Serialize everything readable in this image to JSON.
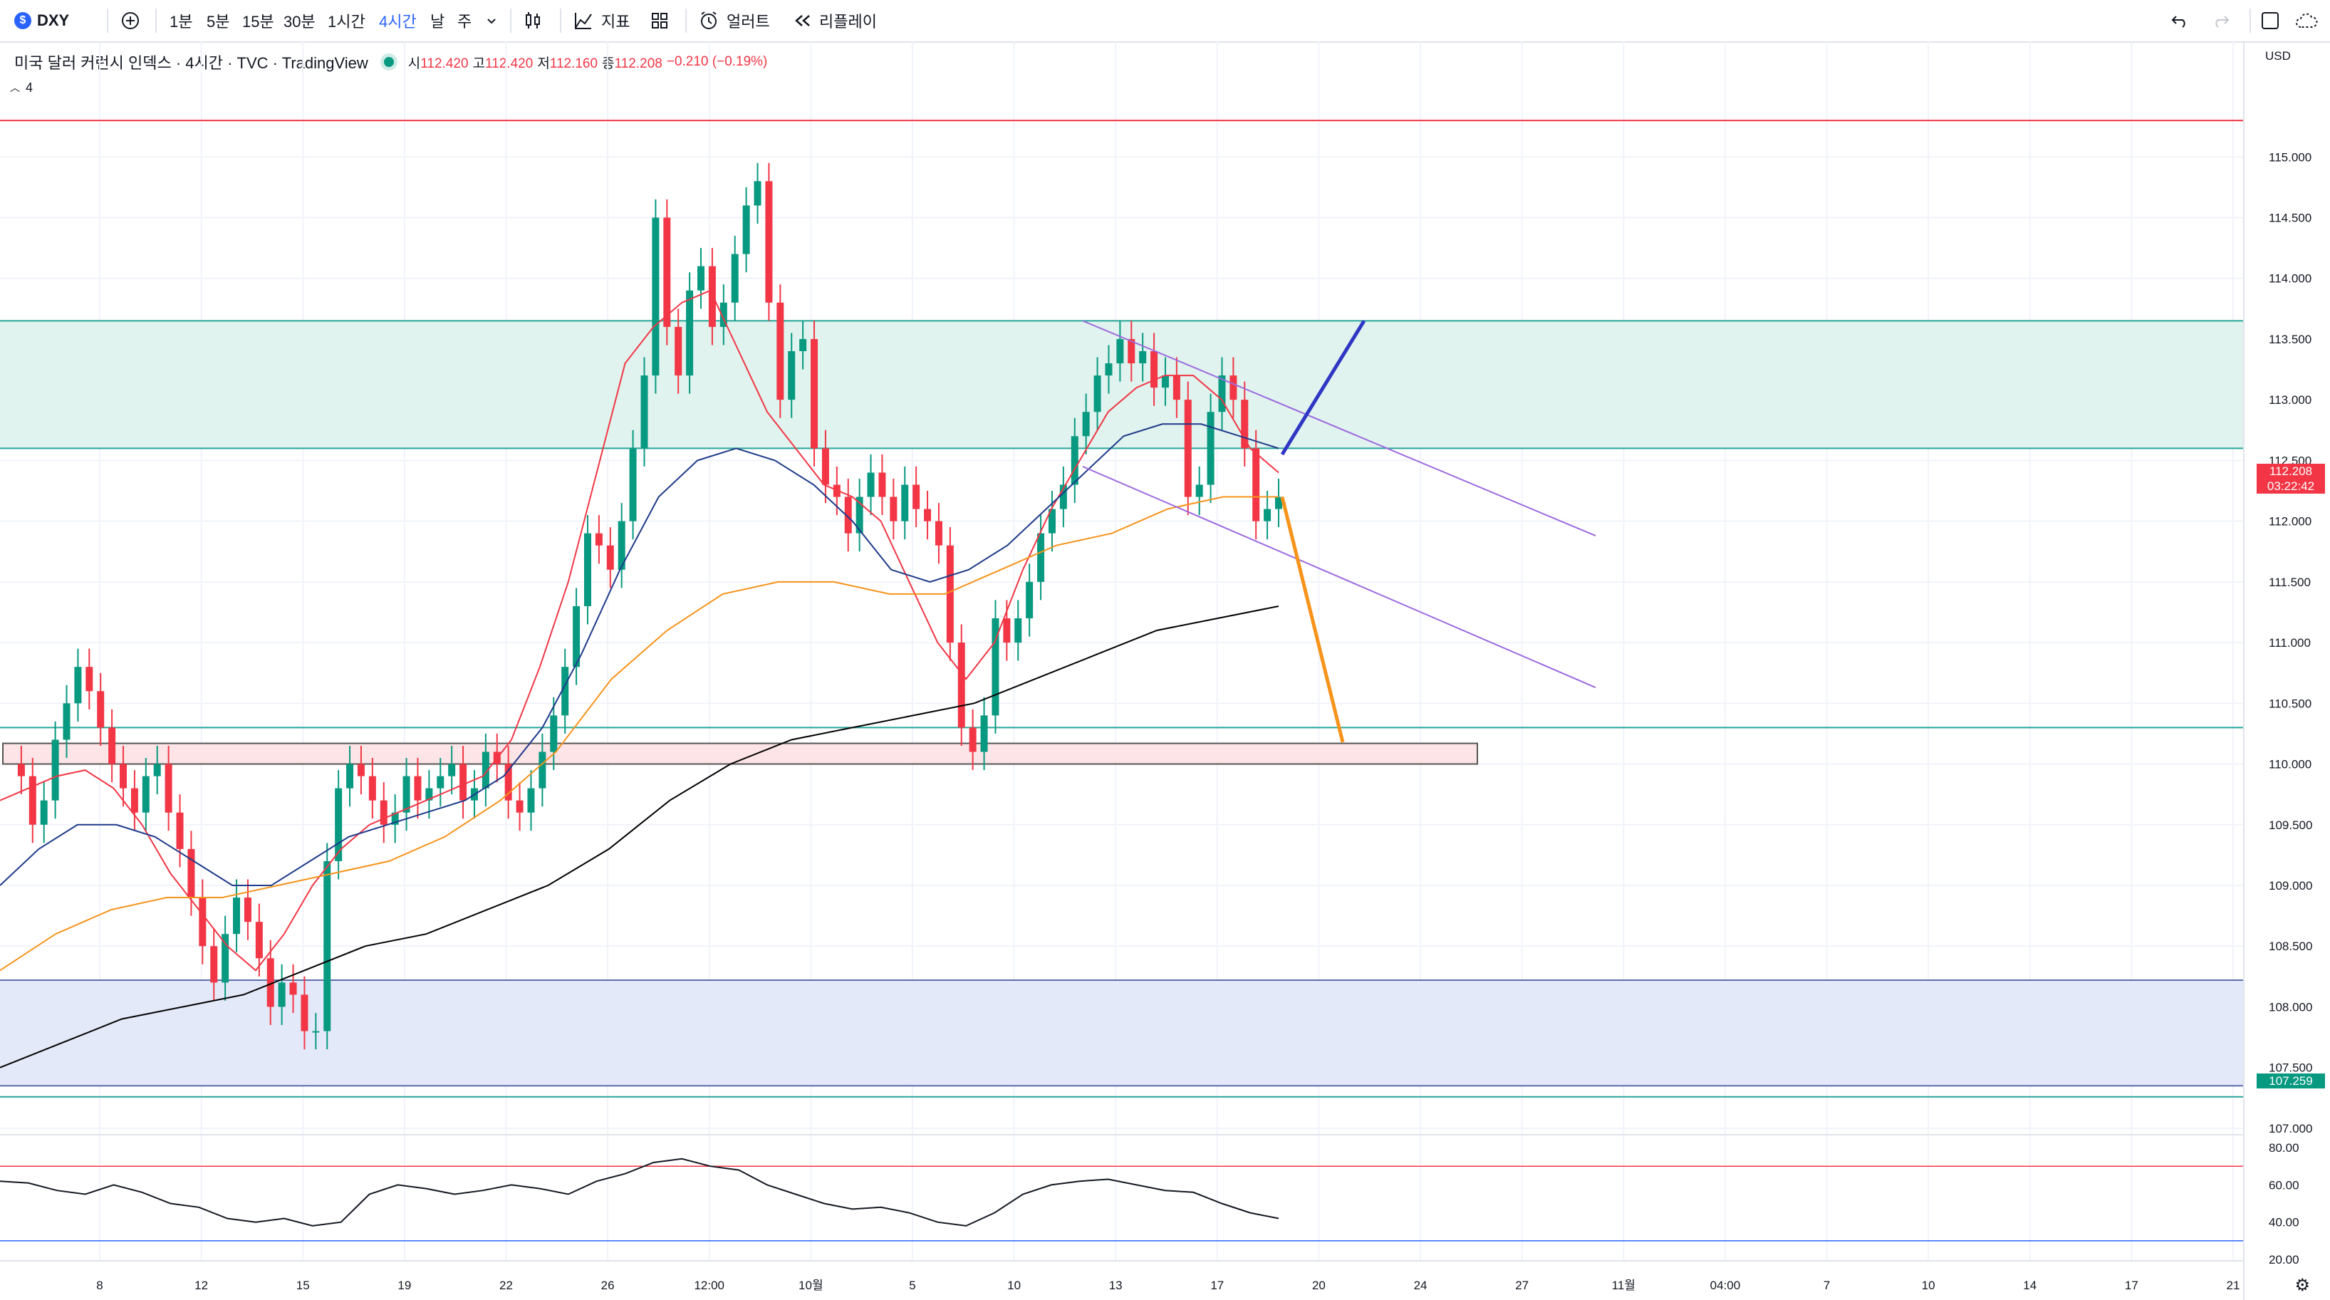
{
  "toolbar": {
    "symbol": "DXY",
    "symbol_icon": "$",
    "intervals": [
      "1분",
      "5분",
      "15분",
      "30분",
      "1시간",
      "4시간",
      "날",
      "주"
    ],
    "active_interval": "4시간",
    "indicators_label": "지표",
    "alert_label": "얼러트",
    "replay_label": "리플레이"
  },
  "legend": {
    "title": "미국 달러 커런시 인덱스 · 4시간 · TVC · TradingView",
    "open_label": "시",
    "open": "112.420",
    "high_label": "고",
    "high": "112.420",
    "low_label": "저",
    "low": "112.160",
    "close_label": "종",
    "close": "112.208",
    "change": "−0.210 (−0.19%)",
    "indicator_count": "4"
  },
  "price_axis": {
    "currency": "USD",
    "ticks": [
      "115.000",
      "114.500",
      "114.000",
      "113.500",
      "113.000",
      "112.500",
      "112.000",
      "111.500",
      "111.000",
      "110.500",
      "110.000",
      "109.500",
      "109.000",
      "108.500",
      "108.000",
      "107.500",
      "107.000"
    ],
    "current_price": "112.208",
    "countdown": "03:22:42",
    "marked_price": "107.259"
  },
  "rsi_axis": {
    "ticks": [
      "80.00",
      "60.00",
      "40.00",
      "20.00"
    ]
  },
  "time_axis": {
    "labels": [
      "8",
      "12",
      "15",
      "19",
      "22",
      "26",
      "12:00",
      "10월",
      "5",
      "10",
      "13",
      "17",
      "20",
      "24",
      "27",
      "11월",
      "04:00",
      "7",
      "10",
      "14",
      "17",
      "21"
    ]
  },
  "colors": {
    "up": "#089981",
    "down": "#f23645",
    "accent": "#2962ff",
    "ema_fast": "#f23645",
    "ema_mid": "#1e3a8a",
    "ema_slow": "#f7931a",
    "ema_long": "#000000",
    "zone_green": "#e0f3ee",
    "zone_blue": "#e4e9f9",
    "zone_pink": "#fde4e6",
    "channel": "#9c6ade",
    "rsi": "#131722"
  },
  "chart_data": {
    "type": "candlestick",
    "symbol": "DXY",
    "timeframe": "4H",
    "ylim": [
      106.8,
      115.6
    ],
    "series": [
      {
        "name": "price",
        "values": [
          110.0,
          109.9,
          109.5,
          109.7,
          110.2,
          110.5,
          110.8,
          110.6,
          110.3,
          110.0,
          109.8,
          109.6,
          109.9,
          110.0,
          109.6,
          109.3,
          108.9,
          108.5,
          108.2,
          108.6,
          108.9,
          108.7,
          108.4,
          108.0,
          108.2,
          108.1,
          107.8,
          107.8,
          109.2,
          109.8,
          110.0,
          109.9,
          109.7,
          109.5,
          109.6,
          109.9,
          109.7,
          109.8,
          109.9,
          110.0,
          109.7,
          109.8,
          110.1,
          110.0,
          109.7,
          109.6,
          109.8,
          110.1,
          110.4,
          110.8,
          111.3,
          111.9,
          111.8,
          111.6,
          112.0,
          112.6,
          113.2,
          114.5,
          113.6,
          113.2,
          113.9,
          114.1,
          113.6,
          113.8,
          114.2,
          114.6,
          114.8,
          113.8,
          113.0,
          113.4,
          113.5,
          112.6,
          112.3,
          112.2,
          111.9,
          112.2,
          112.4,
          112.2,
          112.0,
          112.3,
          112.1,
          112.0,
          111.8,
          111.0,
          110.3,
          110.1,
          110.4,
          111.2,
          111.0,
          111.2,
          111.5,
          111.9,
          112.1,
          112.3,
          112.7,
          112.9,
          113.2,
          113.3,
          113.5,
          113.3,
          113.4,
          113.1,
          113.2,
          113.0,
          112.2,
          112.3,
          112.9,
          113.2,
          113.0,
          112.6,
          112.0,
          112.1,
          112.2
        ]
      },
      {
        "name": "EMA short",
        "values": [
          109.7,
          109.8,
          109.9,
          109.95,
          109.8,
          109.5,
          109.1,
          108.8,
          108.5,
          108.3,
          108.6,
          109.0,
          109.3,
          109.5,
          109.6,
          109.7,
          109.8,
          109.9,
          110.2,
          110.8,
          111.5,
          112.4,
          113.3,
          113.6,
          113.8,
          113.9,
          113.4,
          112.9,
          112.6,
          112.3,
          112.2,
          112.0,
          111.5,
          111.0,
          110.7,
          111.0,
          111.6,
          112.1,
          112.5,
          112.9,
          113.1,
          113.2,
          113.2,
          113.0,
          112.6,
          112.4
        ]
      },
      {
        "name": "EMA mid",
        "values": [
          109.0,
          109.3,
          109.5,
          109.5,
          109.4,
          109.2,
          109.0,
          109.0,
          109.2,
          109.4,
          109.5,
          109.6,
          109.7,
          109.9,
          110.3,
          110.9,
          111.6,
          112.2,
          112.5,
          112.6,
          112.5,
          112.3,
          112.0,
          111.6,
          111.5,
          111.6,
          111.8,
          112.1,
          112.4,
          112.7,
          112.8,
          112.8,
          112.7,
          112.6
        ]
      },
      {
        "name": "EMA slow",
        "values": [
          108.3,
          108.6,
          108.8,
          108.9,
          108.9,
          109.0,
          109.1,
          109.2,
          109.4,
          109.7,
          110.1,
          110.7,
          111.1,
          111.4,
          111.5,
          111.5,
          111.4,
          111.4,
          111.6,
          111.8,
          111.9,
          112.1,
          112.2,
          112.2
        ]
      },
      {
        "name": "EMA long",
        "values": [
          107.5,
          107.7,
          107.9,
          108.0,
          108.1,
          108.3,
          108.5,
          108.6,
          108.8,
          109.0,
          109.3,
          109.7,
          110.0,
          110.2,
          110.3,
          110.4,
          110.5,
          110.7,
          110.9,
          111.1,
          111.2,
          111.3
        ]
      }
    ],
    "zones": [
      {
        "name": "resistance",
        "from": 112.6,
        "to": 113.65
      },
      {
        "name": "support",
        "from": 107.35,
        "to": 108.22
      },
      {
        "name": "box",
        "from": 110.0,
        "to": 110.17
      }
    ],
    "horizontal_lines": [
      115.3,
      110.3,
      107.259
    ],
    "rsi": {
      "ylim": [
        20,
        85
      ],
      "levels": [
        70,
        30
      ],
      "values": [
        62,
        61,
        57,
        55,
        60,
        56,
        50,
        48,
        42,
        40,
        42,
        38,
        40,
        55,
        60,
        58,
        55,
        57,
        60,
        58,
        55,
        62,
        66,
        72,
        74,
        70,
        68,
        60,
        55,
        50,
        47,
        48,
        45,
        40,
        38,
        45,
        55,
        60,
        62,
        63,
        60,
        57,
        56,
        50,
        45,
        42
      ]
    }
  }
}
